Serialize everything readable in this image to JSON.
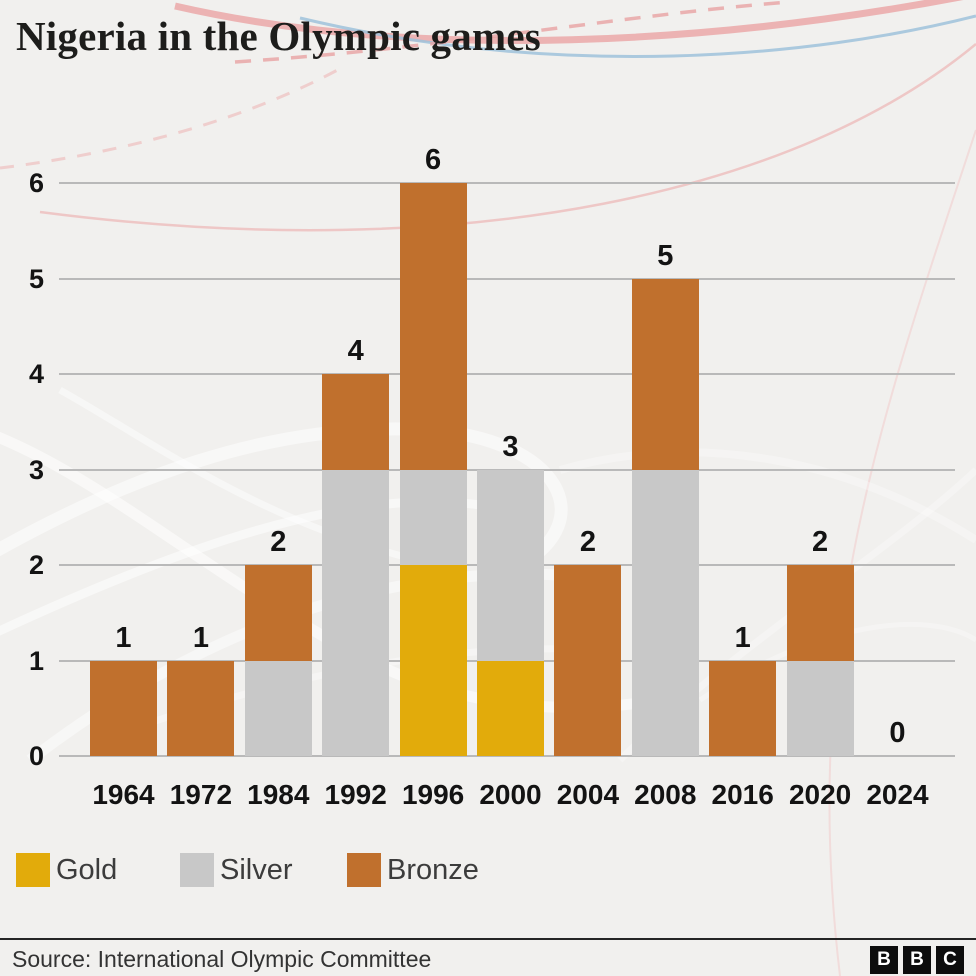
{
  "title": "Nigeria in the Olympic games",
  "chart_data": {
    "type": "bar",
    "stacked": true,
    "title": "Nigeria in the Olympic games",
    "categories": [
      "1964",
      "1972",
      "1984",
      "1992",
      "1996",
      "2000",
      "2004",
      "2008",
      "2016",
      "2020",
      "2024"
    ],
    "series": [
      {
        "name": "Gold",
        "color": "#E2AB0B",
        "values": [
          0,
          0,
          0,
          0,
          2,
          1,
          0,
          0,
          0,
          0,
          0
        ]
      },
      {
        "name": "Silver",
        "color": "#C8C8C8",
        "values": [
          0,
          0,
          1,
          3,
          1,
          2,
          0,
          3,
          0,
          1,
          0
        ]
      },
      {
        "name": "Bronze",
        "color": "#C0702D",
        "values": [
          1,
          1,
          1,
          1,
          3,
          0,
          2,
          2,
          1,
          1,
          0
        ]
      }
    ],
    "totals": [
      1,
      1,
      2,
      4,
      6,
      3,
      2,
      5,
      1,
      2,
      0
    ],
    "xlabel": "",
    "ylabel": "",
    "ylim": [
      0,
      6
    ],
    "yticks": [
      0,
      1,
      2,
      3,
      4,
      5,
      6
    ],
    "grid": "horizontal",
    "legend_position": "bottom",
    "value_labels": true
  },
  "legend": {
    "items": [
      {
        "label": "Gold",
        "color": "#E2AB0B"
      },
      {
        "label": "Silver",
        "color": "#C8C8C8"
      },
      {
        "label": "Bronze",
        "color": "#C0702D"
      }
    ]
  },
  "footer": {
    "source": "Source: International Olympic Committee",
    "logo_letters": [
      "B",
      "B",
      "C"
    ]
  }
}
